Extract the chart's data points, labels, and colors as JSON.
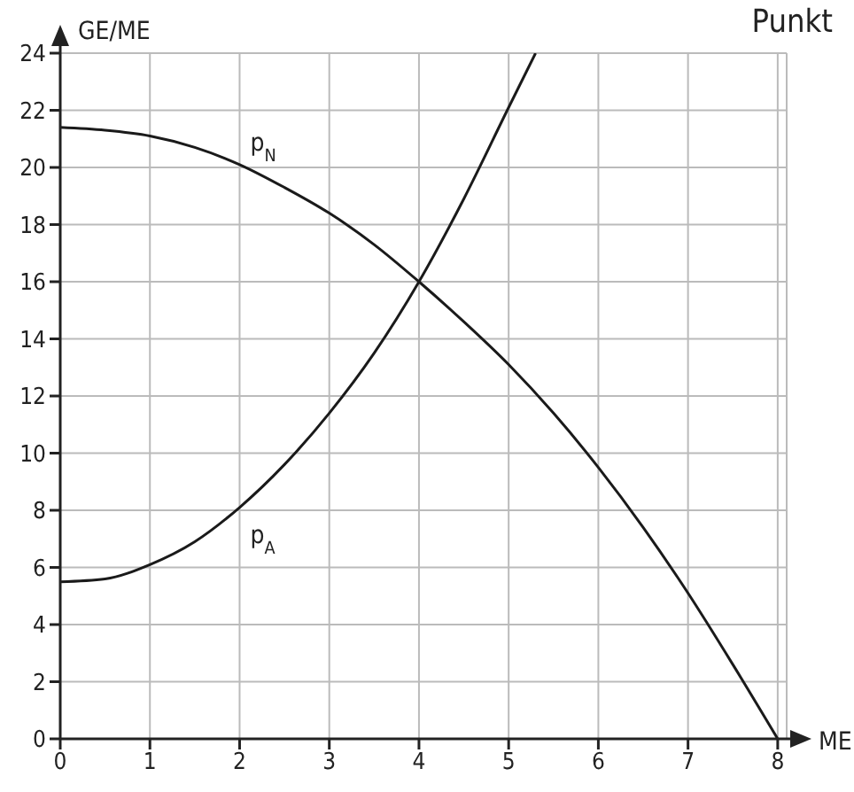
{
  "chart_data": {
    "type": "line",
    "xlabel": "ME",
    "ylabel": "GE/ME",
    "annotations": [
      "Punkt"
    ],
    "xlim": [
      0,
      8.1
    ],
    "xticks": [
      0,
      1,
      2,
      3,
      4,
      5,
      6,
      7,
      8
    ],
    "ylim": [
      0,
      24
    ],
    "yticks": [
      0,
      2,
      4,
      6,
      8,
      10,
      12,
      14,
      16,
      18,
      20,
      22,
      24
    ],
    "grid": true,
    "legend": false,
    "marker": "none",
    "line_style": "solid",
    "series": [
      {
        "name": "p$_{N}$",
        "color": "#1a1a1a",
        "x": [
          0,
          0.5,
          1,
          1.5,
          2,
          2.5,
          3,
          3.5,
          4,
          4.5,
          5,
          5.5,
          6,
          6.5,
          7,
          7.5,
          8
        ],
        "values": [
          21.4,
          21.3,
          21.1,
          20.7,
          20.1,
          19.3,
          18.4,
          17.3,
          16,
          14.6,
          13.1,
          11.4,
          9.5,
          7.4,
          5.1,
          2.6,
          0
        ]
      },
      {
        "name": "p$_{A}$",
        "color": "#1a1a1a",
        "x": [
          0,
          0.5,
          1,
          1.5,
          2,
          2.5,
          3,
          3.5,
          4,
          4.5,
          5,
          5.3
        ],
        "values": [
          5.5,
          5.6,
          6.1,
          6.9,
          8.1,
          9.6,
          11.4,
          13.5,
          16,
          18.9,
          22.1,
          24
        ]
      }
    ]
  }
}
